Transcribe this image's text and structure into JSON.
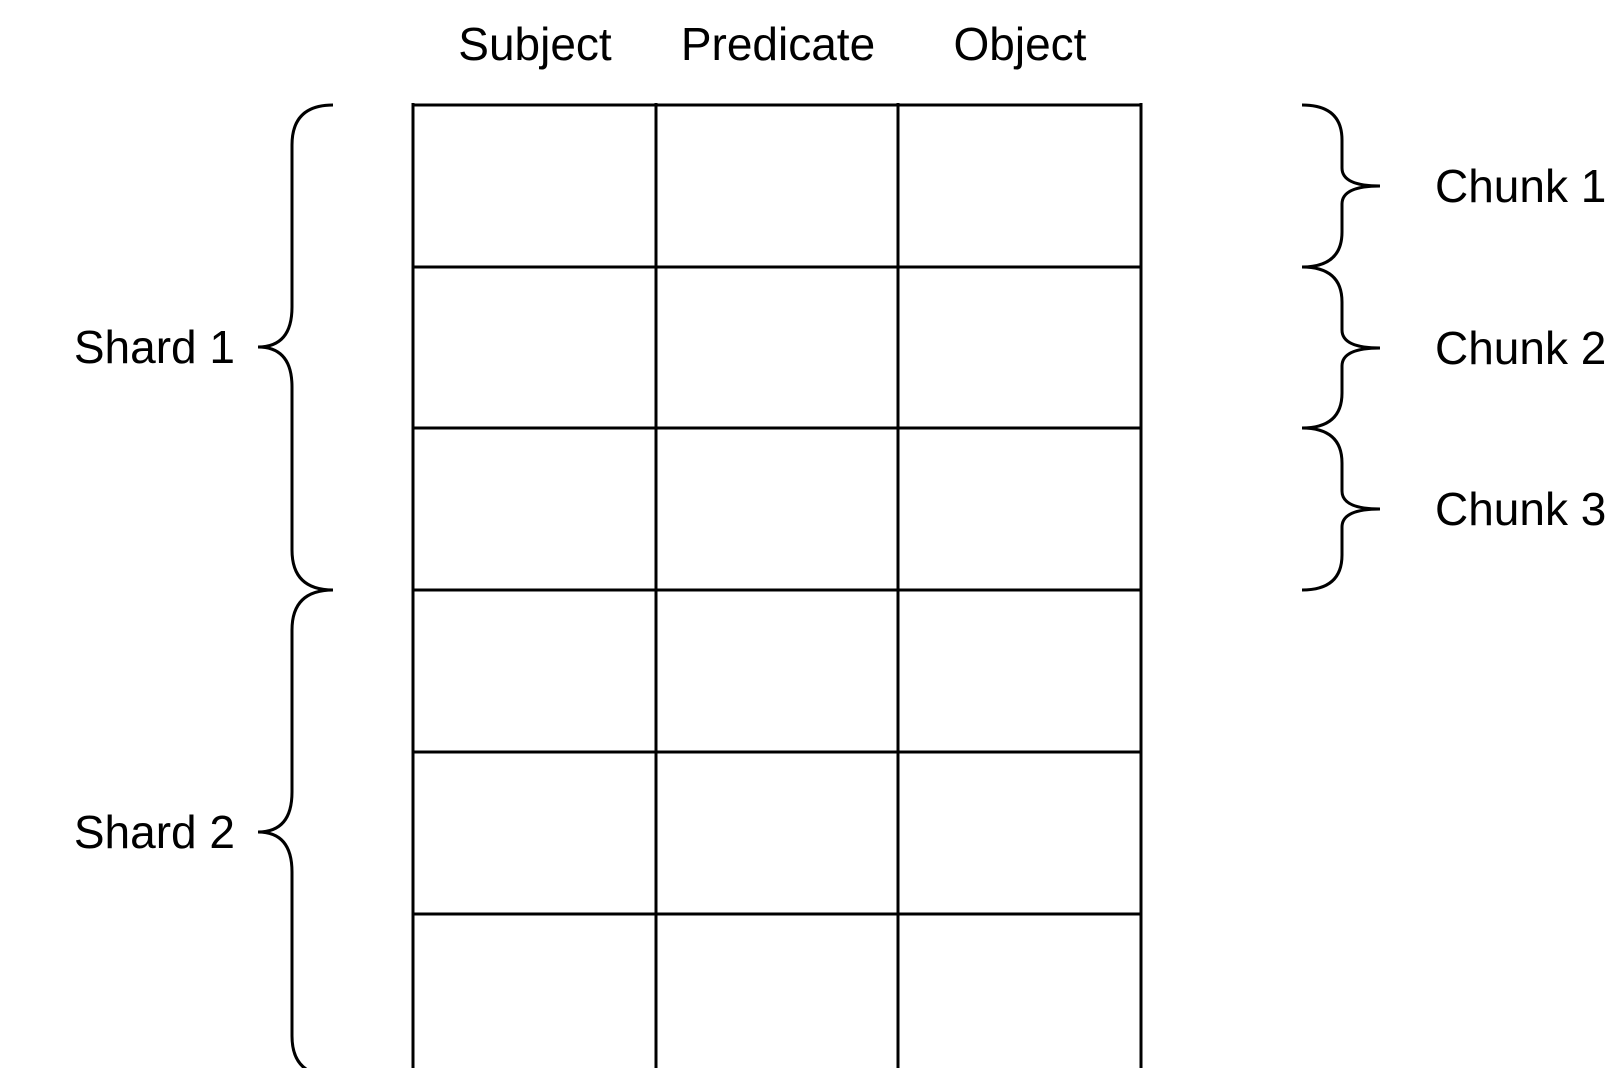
{
  "columns": [
    "Subject",
    "Predicate",
    "Object"
  ],
  "table": {
    "visible_rows": 6,
    "row_cells": [
      [
        "",
        "",
        ""
      ],
      [
        "",
        "",
        ""
      ],
      [
        "",
        "",
        ""
      ],
      [
        "",
        "",
        ""
      ],
      [
        "",
        "",
        ""
      ],
      [
        "",
        "",
        ""
      ]
    ]
  },
  "shards": [
    {
      "label": "Shard 1",
      "rows": 3
    },
    {
      "label": "Shard 2",
      "rows": 3
    }
  ],
  "chunks": [
    {
      "label": "Chunk 1",
      "rows": 1
    },
    {
      "label": "Chunk 2",
      "rows": 1
    },
    {
      "label": "Chunk 3",
      "rows": 1
    }
  ],
  "colors": {
    "line": "#000000",
    "background": "#ffffff",
    "text": "#000000"
  }
}
